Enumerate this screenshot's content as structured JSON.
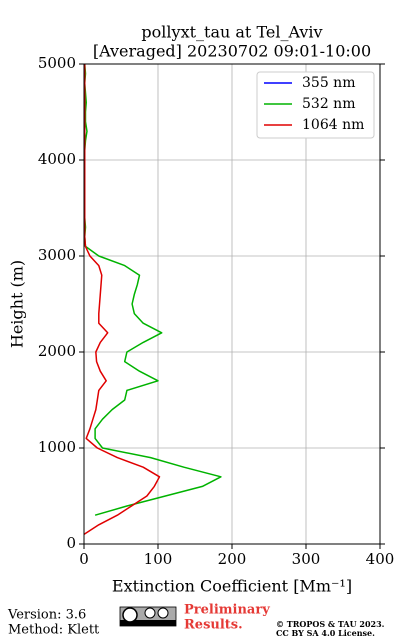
{
  "chart_data": {
    "type": "line",
    "title": "pollyxt_tau at Tel_Aviv",
    "subtitle": "[Averaged] 20230702 09:01-10:00",
    "x_label": "Extinction Coefficient [Mm⁻¹]",
    "y_label": "Height (m)",
    "y": [
      0,
      100,
      200,
      300,
      400,
      500,
      600,
      700,
      800,
      900,
      1000,
      1100,
      1200,
      1300,
      1400,
      1500,
      1600,
      1700,
      1800,
      1900,
      2000,
      2100,
      2200,
      2300,
      2400,
      2500,
      2600,
      2700,
      2800,
      2900,
      3000,
      3100,
      3200,
      3300,
      3400,
      3500,
      3600,
      3700,
      3800,
      3900,
      4000,
      4100,
      4200,
      4300,
      4400,
      4500,
      4600,
      4700,
      4800,
      4900,
      5000
    ],
    "series": [
      {
        "name": "355 nm",
        "color": "#0000ff",
        "values": [
          null,
          null,
          null,
          null,
          null,
          null,
          null,
          null,
          null,
          null,
          null,
          null,
          null,
          null,
          null,
          null,
          null,
          null,
          null,
          null,
          null,
          null,
          null,
          null,
          null,
          null,
          null,
          null,
          null,
          null,
          null,
          null,
          null,
          null,
          null,
          null,
          null,
          null,
          null,
          null,
          null,
          null,
          null,
          null,
          null,
          null,
          null,
          null,
          null,
          null,
          null
        ]
      },
      {
        "name": "532 nm",
        "color": "#00b300",
        "values": [
          null,
          null,
          null,
          15,
          60,
          110,
          160,
          185,
          135,
          90,
          25,
          15,
          15,
          25,
          38,
          55,
          58,
          100,
          75,
          55,
          58,
          80,
          105,
          80,
          68,
          65,
          68,
          72,
          75,
          55,
          20,
          2,
          1,
          2,
          1,
          1,
          1,
          1,
          1,
          1,
          1,
          1,
          2,
          4,
          2,
          2,
          3,
          2,
          1,
          2,
          1
        ]
      },
      {
        "name": "1064 nm",
        "color": "#e00000",
        "values": [
          null,
          0,
          20,
          45,
          65,
          85,
          95,
          102,
          80,
          45,
          18,
          3,
          8,
          12,
          16,
          18,
          20,
          30,
          22,
          17,
          16,
          22,
          32,
          20,
          20,
          21,
          22,
          23,
          24,
          20,
          8,
          2,
          1,
          1,
          1,
          1,
          1,
          1,
          1,
          1,
          1,
          1,
          1,
          1,
          1,
          1,
          1,
          1,
          1,
          1,
          1
        ]
      }
    ],
    "xlim": [
      0,
      400
    ],
    "xticks": [
      0,
      100,
      200,
      300,
      400
    ],
    "ylim": [
      0,
      5000
    ],
    "yticks": [
      0,
      1000,
      2000,
      3000,
      4000,
      5000
    ],
    "grid": true,
    "legend": "upper right"
  },
  "footer": {
    "version": "Version: 3.6",
    "method": "Method: Klett",
    "preliminary": "Preliminary",
    "results": "Results.",
    "copyright": "© TROPOS & TAU 2023.",
    "license": "CC BY SA 4.0 License."
  }
}
